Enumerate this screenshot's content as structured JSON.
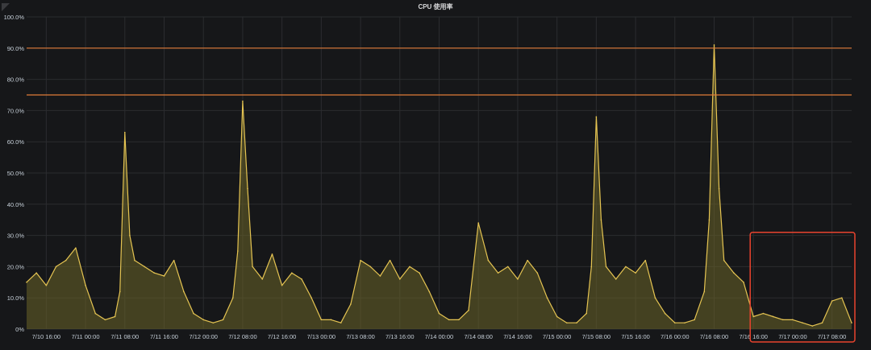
{
  "panel": {
    "title": "CPU 使用率"
  },
  "colors": {
    "background": "#161719",
    "grid": "#2b2c2f",
    "series_line": "#e5c452",
    "series_fill": "#6b6428",
    "threshold_line": "#e07b39",
    "highlight_box": "#e8432e",
    "text": "#c7d0d9"
  },
  "chart_data": {
    "type": "area",
    "title": "CPU 使用率",
    "xlabel": "",
    "ylabel": "",
    "ylim": [
      0,
      100
    ],
    "y_ticks": [
      "0%",
      "10.0%",
      "20.0%",
      "30.0%",
      "40.0%",
      "50.0%",
      "60.0%",
      "70.0%",
      "80.0%",
      "90.0%",
      "100.0%"
    ],
    "x_ticks": [
      "7/10 16:00",
      "7/11 00:00",
      "7/11 08:00",
      "7/11 16:00",
      "7/12 00:00",
      "7/12 08:00",
      "7/12 16:00",
      "7/13 00:00",
      "7/13 08:00",
      "7/13 16:00",
      "7/14 00:00",
      "7/14 08:00",
      "7/14 16:00",
      "7/15 00:00",
      "7/15 08:00",
      "7/15 16:00",
      "7/16 00:00",
      "7/16 08:00",
      "7/16 16:00",
      "7/17 00:00",
      "7/17 08:00"
    ],
    "x_range": [
      "7/10 12:00",
      "7/17 12:00"
    ],
    "grid": true,
    "thresholds": [
      90,
      75
    ],
    "highlight_region": {
      "x_start": "7/16 16:00",
      "x_end": "7/17 12:00",
      "y_start": 0,
      "y_end": 31
    },
    "series": [
      {
        "x": [
          "7/10 12:00",
          "7/10 14:00",
          "7/10 16:00",
          "7/10 18:00",
          "7/10 20:00",
          "7/10 22:00",
          "7/11 00:00",
          "7/11 02:00",
          "7/11 04:00",
          "7/11 06:00",
          "7/11 07:00",
          "7/11 08:00",
          "7/11 09:00",
          "7/11 10:00",
          "7/11 12:00",
          "7/11 14:00",
          "7/11 16:00",
          "7/11 18:00",
          "7/11 20:00",
          "7/11 22:00",
          "7/12 00:00",
          "7/12 02:00",
          "7/12 04:00",
          "7/12 06:00",
          "7/12 07:00",
          "7/12 08:00",
          "7/12 09:00",
          "7/12 10:00",
          "7/12 12:00",
          "7/12 14:00",
          "7/12 16:00",
          "7/12 18:00",
          "7/12 20:00",
          "7/12 22:00",
          "7/13 00:00",
          "7/13 02:00",
          "7/13 04:00",
          "7/13 06:00",
          "7/13 08:00",
          "7/13 10:00",
          "7/13 12:00",
          "7/13 14:00",
          "7/13 16:00",
          "7/13 18:00",
          "7/13 20:00",
          "7/13 22:00",
          "7/14 00:00",
          "7/14 02:00",
          "7/14 04:00",
          "7/14 06:00",
          "7/14 08:00",
          "7/14 10:00",
          "7/14 12:00",
          "7/14 14:00",
          "7/14 16:00",
          "7/14 18:00",
          "7/14 20:00",
          "7/14 22:00",
          "7/15 00:00",
          "7/15 02:00",
          "7/15 04:00",
          "7/15 06:00",
          "7/15 07:00",
          "7/15 08:00",
          "7/15 09:00",
          "7/15 10:00",
          "7/15 12:00",
          "7/15 14:00",
          "7/15 16:00",
          "7/15 18:00",
          "7/15 20:00",
          "7/15 22:00",
          "7/16 00:00",
          "7/16 02:00",
          "7/16 04:00",
          "7/16 06:00",
          "7/16 07:00",
          "7/16 08:00",
          "7/16 09:00",
          "7/16 10:00",
          "7/16 12:00",
          "7/16 14:00",
          "7/16 16:00",
          "7/16 18:00",
          "7/16 20:00",
          "7/16 22:00",
          "7/17 00:00",
          "7/17 02:00",
          "7/17 04:00",
          "7/17 06:00",
          "7/17 08:00",
          "7/17 10:00",
          "7/17 12:00"
        ],
        "values": [
          15,
          18,
          14,
          20,
          22,
          26,
          14,
          5,
          3,
          4,
          12,
          63,
          30,
          22,
          20,
          18,
          17,
          22,
          12,
          5,
          3,
          2,
          3,
          10,
          25,
          73,
          45,
          20,
          16,
          24,
          14,
          18,
          16,
          10,
          3,
          3,
          2,
          8,
          22,
          20,
          17,
          22,
          16,
          20,
          18,
          12,
          5,
          3,
          3,
          6,
          34,
          22,
          18,
          20,
          16,
          22,
          18,
          10,
          4,
          2,
          2,
          5,
          20,
          68,
          35,
          20,
          16,
          20,
          18,
          22,
          10,
          5,
          2,
          2,
          3,
          12,
          35,
          91,
          45,
          22,
          18,
          15,
          4,
          5,
          4,
          3,
          3,
          2,
          1,
          2,
          9,
          10,
          2
        ]
      }
    ]
  }
}
